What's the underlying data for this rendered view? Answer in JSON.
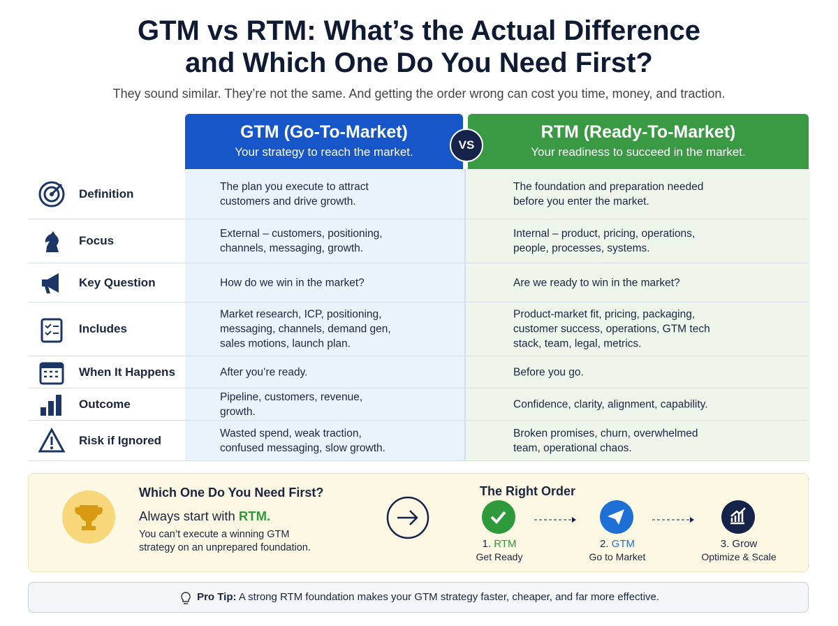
{
  "header": {
    "title_line1": "GTM vs RTM: What’s the Actual Difference",
    "title_line2": "and Which One Do You Need First?",
    "subtitle": "They sound similar. They’re not the same. And getting the order wrong can cost you time, money, and traction."
  },
  "columns": {
    "gtm": {
      "title": "GTM (Go-To-Market)",
      "subtitle": "Your strategy to reach the market."
    },
    "vs": "VS",
    "rtm": {
      "title": "RTM (Ready-To-Market)",
      "subtitle": "Your readiness to succeed in the market."
    }
  },
  "table": {
    "rows": [
      [
        "Definition",
        "The plan you execute to attract customers and drive growth.",
        "The foundation and preparation needed before you enter the market."
      ],
      [
        "Focus",
        "External – customers, positioning, channels, messaging, growth.",
        "Internal – product, pricing, operations, people, processes, systems."
      ],
      [
        "Key Question",
        "How do we win in the market?",
        "Are we ready to win in the market?"
      ],
      [
        "Includes",
        "Market research, ICP, positioning, messaging, channels, demand gen, sales motions, launch plan.",
        "Product-market fit, pricing, packaging, customer success, operations, GTM tech stack, team, legal, metrics."
      ],
      [
        "When It Happens",
        "After you’re ready.",
        "Before you go."
      ],
      [
        "Outcome",
        "Pipeline, customers, revenue, growth.",
        "Confidence, clarity, alignment, capability."
      ],
      [
        "Risk if Ignored",
        "Wasted spend, weak traction, confused messaging, slow growth.",
        "Broken promises, churn, overwhelmed team, operational chaos."
      ]
    ]
  },
  "first": {
    "title": "Which One Do You Need First?",
    "lead": "Always start with",
    "lead_highlight": "RTM.",
    "note": "You can’t execute a winning GTM strategy on an unprepared foundation."
  },
  "order": {
    "title": "The Right Order",
    "steps": [
      {
        "number": "1.",
        "name": "RTM",
        "caption": "Get Ready"
      },
      {
        "number": "2.",
        "name": "GTM",
        "caption": "Go to Market"
      },
      {
        "number": "3.",
        "name": "Grow",
        "caption": "Optimize & Scale"
      }
    ]
  },
  "pro_tip": {
    "label": "Pro Tip:",
    "text": "A strong RTM foundation makes your GTM strategy faster, cheaper, and far more effective."
  }
}
